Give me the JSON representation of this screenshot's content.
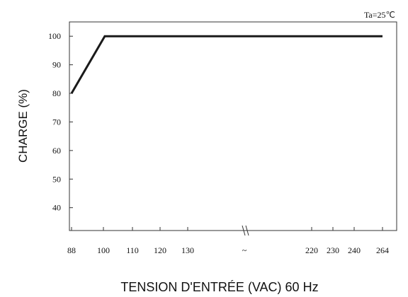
{
  "chart_data": {
    "type": "line",
    "annotation": "Ta=25℃",
    "ylabel": "CHARGE (%)",
    "xlabel": "TENSION D'ENTRÉE (VAC) 60 Hz",
    "y_ticks": [
      40,
      50,
      60,
      70,
      80,
      90,
      100
    ],
    "ylim": [
      32,
      105
    ],
    "x_ticks": [
      "88",
      "100",
      "110",
      "120",
      "130",
      "~",
      "220",
      "230",
      "240",
      "264"
    ],
    "axis_break": true,
    "grid": false,
    "series": [
      {
        "x": [
          88,
          100,
          264
        ],
        "y": [
          80,
          100,
          100
        ]
      }
    ],
    "colors": {
      "line": "#1a1a1a",
      "axis": "#222222",
      "text": "#111111"
    }
  }
}
